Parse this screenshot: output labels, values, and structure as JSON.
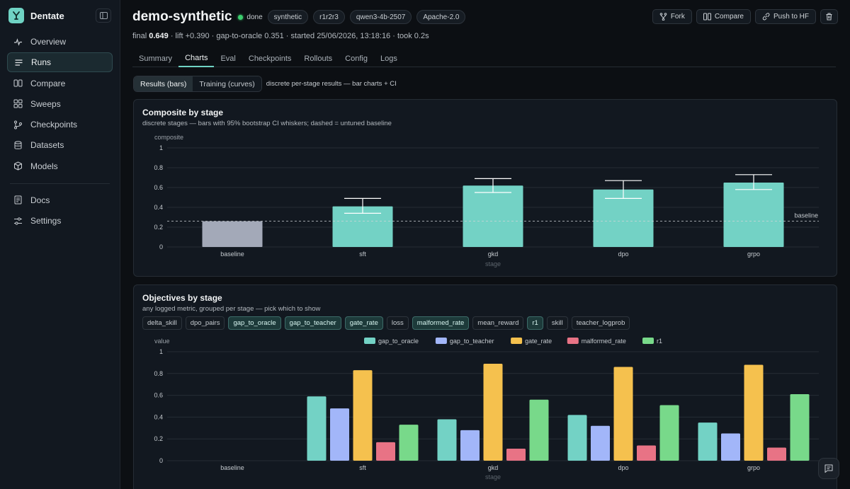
{
  "app": {
    "name": "Dentate"
  },
  "sidebar": {
    "items": [
      {
        "label": "Overview",
        "icon": "activity-icon"
      },
      {
        "label": "Runs",
        "icon": "list-icon",
        "active": true
      },
      {
        "label": "Compare",
        "icon": "columns-icon"
      },
      {
        "label": "Sweeps",
        "icon": "grid-icon"
      },
      {
        "label": "Checkpoints",
        "icon": "git-branch-icon"
      },
      {
        "label": "Datasets",
        "icon": "database-icon"
      },
      {
        "label": "Models",
        "icon": "box-icon"
      }
    ],
    "footer_items": [
      {
        "label": "Docs",
        "icon": "doc-icon"
      },
      {
        "label": "Settings",
        "icon": "sliders-icon"
      }
    ]
  },
  "run": {
    "title": "demo-synthetic",
    "status": "done",
    "tags": [
      "synthetic",
      "r1r2r3",
      "qwen3-4b-2507",
      "Apache-2.0"
    ],
    "summary": {
      "final_label": "final",
      "final_value": "0.649",
      "rest": " · lift +0.390 · gap-to-oracle 0.351 · started 25/06/2026, 13:18:16 · took 0.2s"
    }
  },
  "actions": {
    "fork": "Fork",
    "compare": "Compare",
    "push": "Push to HF"
  },
  "tabs": [
    "Summary",
    "Charts",
    "Eval",
    "Checkpoints",
    "Rollouts",
    "Config",
    "Logs"
  ],
  "active_tab": "Charts",
  "view_toggle": {
    "bars": "Results (bars)",
    "curves": "Training (curves)",
    "hint": "discrete per-stage results — bar charts + CI"
  },
  "composite_card": {
    "title": "Composite by stage",
    "subtitle": "discrete stages — bars with 95% bootstrap CI whiskers; dashed = untuned baseline"
  },
  "objectives_card": {
    "title": "Objectives by stage",
    "subtitle": "any logged metric, grouped per stage — pick which to show",
    "metric_chips": [
      {
        "label": "delta_skill",
        "on": false
      },
      {
        "label": "dpo_pairs",
        "on": false
      },
      {
        "label": "gap_to_oracle",
        "on": true
      },
      {
        "label": "gap_to_teacher",
        "on": true
      },
      {
        "label": "gate_rate",
        "on": true
      },
      {
        "label": "loss",
        "on": false
      },
      {
        "label": "malformed_rate",
        "on": true
      },
      {
        "label": "mean_reward",
        "on": false
      },
      {
        "label": "r1",
        "on": true
      },
      {
        "label": "skill",
        "on": false
      },
      {
        "label": "teacher_logprob",
        "on": false
      }
    ]
  },
  "chart_data": [
    {
      "type": "bar",
      "ylabel": "composite",
      "xlabel": "stage",
      "ylim": [
        0,
        1
      ],
      "yticks": [
        "0",
        "0.2",
        "0.4",
        "0.6",
        "0.8",
        "1"
      ],
      "categories": [
        "baseline",
        "sft",
        "gkd",
        "dpo",
        "grpo"
      ],
      "values": [
        0.26,
        0.41,
        0.62,
        0.58,
        0.65
      ],
      "ci_low": [
        null,
        0.34,
        0.55,
        0.49,
        0.58
      ],
      "ci_high": [
        null,
        0.49,
        0.69,
        0.67,
        0.73
      ],
      "baseline": 0.26,
      "baseline_label": "baseline",
      "colors": {
        "baseline": "#a3a9b8",
        "bar": "#73d2c5"
      },
      "grid": true
    },
    {
      "type": "bar",
      "ylabel": "value",
      "xlabel": "stage",
      "ylim": [
        0,
        1
      ],
      "yticks": [
        "0",
        "0.2",
        "0.4",
        "0.6",
        "0.8",
        "1"
      ],
      "categories": [
        "baseline",
        "sft",
        "gkd",
        "dpo",
        "grpo"
      ],
      "legend_position": "top",
      "grid": true,
      "series": [
        {
          "name": "gap_to_oracle",
          "color": "#73d2c5",
          "values": [
            null,
            0.59,
            0.38,
            0.42,
            0.35
          ]
        },
        {
          "name": "gap_to_teacher",
          "color": "#a2b6f9",
          "values": [
            null,
            0.48,
            0.28,
            0.32,
            0.25
          ]
        },
        {
          "name": "gate_rate",
          "color": "#f5c14e",
          "values": [
            null,
            0.83,
            0.89,
            0.86,
            0.88
          ]
        },
        {
          "name": "malformed_rate",
          "color": "#e87385",
          "values": [
            null,
            0.17,
            0.11,
            0.14,
            0.12
          ]
        },
        {
          "name": "r1",
          "color": "#78d98a",
          "values": [
            null,
            0.33,
            0.56,
            0.51,
            0.61
          ]
        }
      ]
    }
  ]
}
